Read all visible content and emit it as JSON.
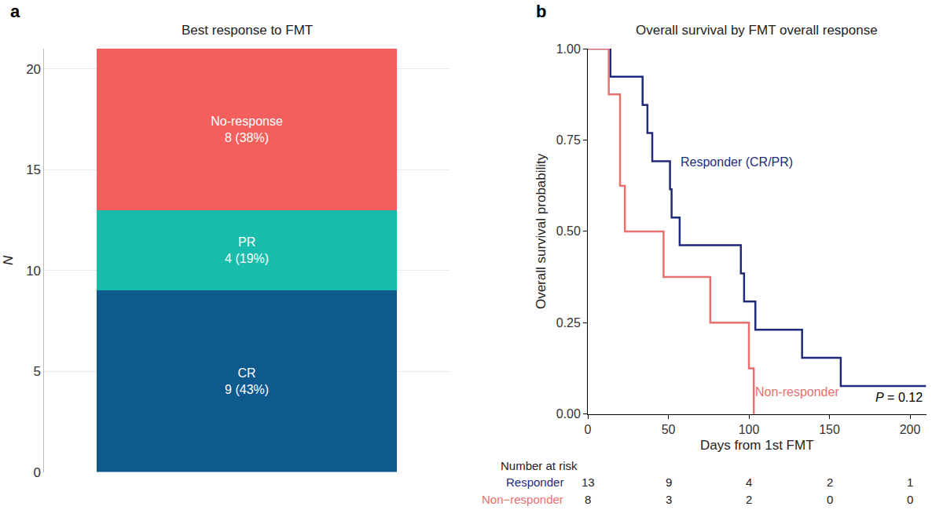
{
  "chart_data": [
    {
      "type": "bar",
      "label": "a",
      "title": "Best response to FMT",
      "ylabel": "N",
      "categories": [
        null
      ],
      "stacked": true,
      "data_labels": true,
      "grid": true,
      "tick_labels": "y",
      "ylim": [
        0,
        21
      ],
      "yticks": [
        0,
        5,
        10,
        15,
        20
      ],
      "series": [
        {
          "name": "CR",
          "color": "#0f5a8c",
          "values": [
            9
          ],
          "value_labels": [
            "9 (43%)"
          ]
        },
        {
          "name": "PR",
          "color": "#19bcaa",
          "values": [
            4
          ],
          "value_labels": [
            "4 (19%)"
          ]
        },
        {
          "name": "No-response",
          "color": "#f25f5c",
          "values": [
            8
          ],
          "value_labels": [
            "8 (38%)"
          ]
        }
      ]
    },
    {
      "type": "line",
      "label": "b",
      "title": "Overall survival by FMT overall response",
      "xlabel": "Days from 1st FMT",
      "ylabel": "Overall survival probability",
      "xlim": [
        0,
        210
      ],
      "xticks": [
        0,
        50,
        100,
        150,
        200
      ],
      "ylim": [
        0,
        1
      ],
      "yticks": [
        {
          "value": 0,
          "label": "0.00"
        },
        {
          "value": 0.25,
          "label": "0.25"
        },
        {
          "value": 0.5,
          "label": "0.50"
        },
        {
          "value": 0.75,
          "label": "0.75"
        },
        {
          "value": 1,
          "label": "1.00"
        }
      ],
      "grid": false,
      "annotations": [
        "P = 0.12"
      ],
      "series": [
        {
          "name": "Responder (CR/PR)",
          "color": "#1f2a7a",
          "line_style": "step",
          "x": [
            0,
            14,
            34,
            37,
            40,
            51,
            52,
            57,
            95,
            97,
            104,
            133,
            157,
            210
          ],
          "values": [
            1.0,
            0.923,
            0.846,
            0.769,
            0.692,
            0.615,
            0.538,
            0.462,
            0.385,
            0.308,
            0.231,
            0.154,
            0.077,
            0.077
          ]
        },
        {
          "name": "Non-responder",
          "color": "#e8706f",
          "line_style": "step",
          "x": [
            0,
            13,
            20,
            23,
            47,
            76,
            100,
            103
          ],
          "values": [
            1.0,
            0.875,
            0.625,
            0.5,
            0.375,
            0.25,
            0.125,
            0.0
          ]
        }
      ],
      "risk_table": {
        "title": "Number at risk",
        "times": [
          0,
          50,
          100,
          150,
          200
        ],
        "rows": [
          {
            "name": "Responder",
            "color": "#1f2a7a",
            "values": [
              13,
              9,
              4,
              2,
              1
            ]
          },
          {
            "name": "Non−responder",
            "color": "#e8706f",
            "values": [
              8,
              3,
              2,
              0,
              0
            ]
          }
        ]
      }
    }
  ]
}
